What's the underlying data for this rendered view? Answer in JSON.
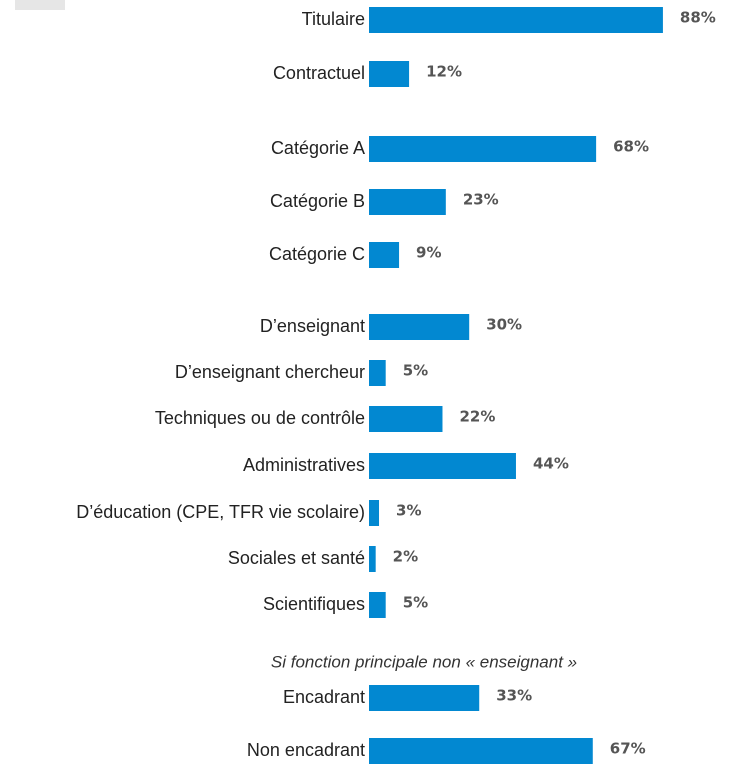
{
  "chart_data": {
    "type": "bar",
    "orientation": "horizontal",
    "categories": [
      "Titulaire",
      "Contractuel",
      "Catégorie A",
      "Catégorie B",
      "Catégorie C",
      "D’enseignant",
      "D’enseignant chercheur",
      "Techniques ou de contrôle",
      "Administratives",
      "D’éducation (CPE, TFR vie scolaire)",
      "Sociales et santé",
      "Scientifiques",
      "Encadrant",
      "Non encadrant"
    ],
    "values": [
      88,
      12,
      68,
      23,
      9,
      30,
      5,
      22,
      44,
      3,
      2,
      5,
      33,
      67
    ],
    "value_labels": [
      "88%",
      "12%",
      "68%",
      "23%",
      "9%",
      "30%",
      "5%",
      "22%",
      "44%",
      "3%",
      "2%",
      "5%",
      "33%",
      "67%"
    ],
    "annotation": "Si fonction principale non « enseignant »",
    "color": "#0288d1",
    "xlim": [
      0,
      100
    ]
  }
}
